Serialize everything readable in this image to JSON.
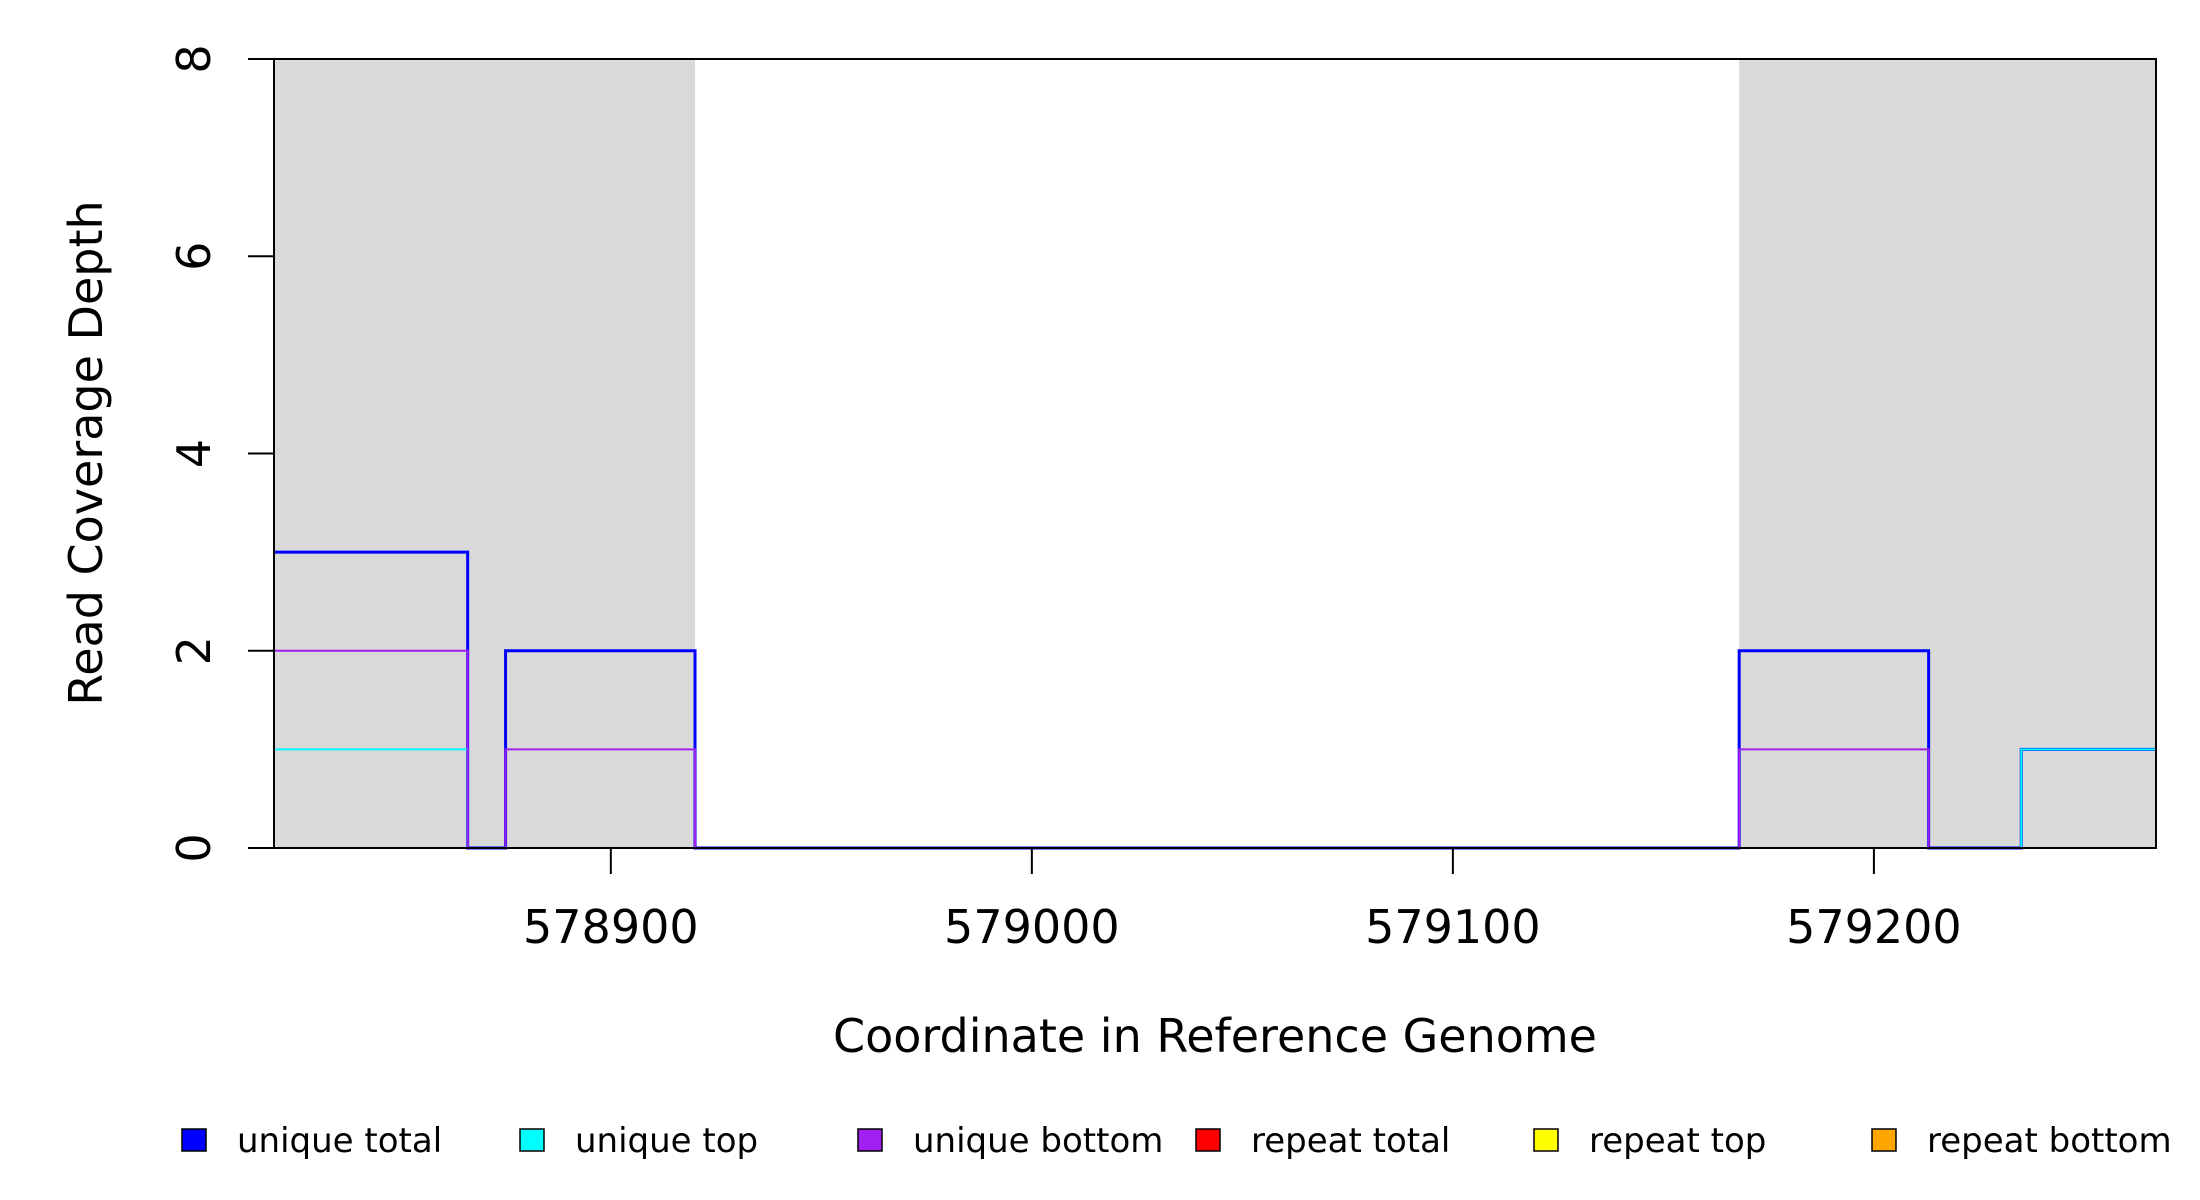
{
  "chart_data": {
    "type": "line",
    "title": "",
    "xlabel": "Coordinate in Reference Genome",
    "ylabel": "Read Coverage Depth",
    "xlim": [
      578820,
      579267
    ],
    "ylim": [
      0,
      8
    ],
    "x_ticks": [
      578900,
      579000,
      579100,
      579200
    ],
    "y_ticks": [
      0,
      2,
      4,
      6,
      8
    ],
    "shaded_regions": [
      {
        "x0": 578820,
        "x1": 578920,
        "color": "#d9d9d9"
      },
      {
        "x0": 579168,
        "x1": 579267,
        "color": "#d9d9d9"
      }
    ],
    "series": [
      {
        "name": "unique total",
        "color": "#0000ff",
        "steps": [
          [
            578820,
            3
          ],
          [
            578866,
            0
          ],
          [
            578875,
            2
          ],
          [
            578920,
            0
          ],
          [
            579168,
            2
          ],
          [
            579213,
            0
          ],
          [
            579235,
            1
          ],
          [
            579267,
            1
          ]
        ]
      },
      {
        "name": "unique top",
        "color": "#00ffff",
        "steps": [
          [
            578820,
            1
          ],
          [
            578866,
            0
          ],
          [
            579235,
            1
          ],
          [
            579267,
            1
          ]
        ]
      },
      {
        "name": "unique bottom",
        "color": "#a020f0",
        "steps": [
          [
            578820,
            2
          ],
          [
            578866,
            0
          ],
          [
            578875,
            1
          ],
          [
            578920,
            0
          ],
          [
            579168,
            1
          ],
          [
            579213,
            0
          ],
          [
            579267,
            0
          ]
        ]
      },
      {
        "name": "repeat total",
        "color": "#ff0000",
        "steps": [
          [
            578820,
            0
          ],
          [
            579267,
            0
          ]
        ]
      },
      {
        "name": "repeat top",
        "color": "#ffff00",
        "steps": [
          [
            578820,
            0
          ],
          [
            579267,
            0
          ]
        ]
      },
      {
        "name": "repeat bottom",
        "color": "#ffa500",
        "steps": [
          [
            578820,
            0
          ],
          [
            579267,
            0
          ]
        ]
      }
    ],
    "legend_position": "bottom",
    "grid": false
  }
}
